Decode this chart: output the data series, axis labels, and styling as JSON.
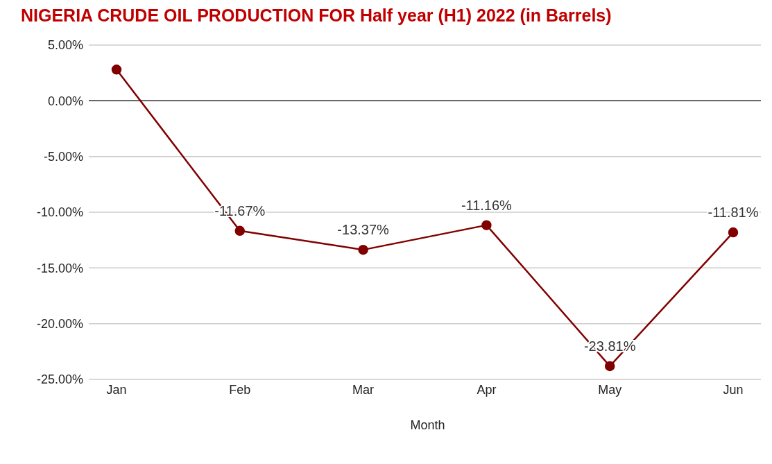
{
  "chart_data": {
    "type": "line",
    "title": "NIGERIA CRUDE OIL PRODUCTION FOR Half year (H1) 2022 (in Barrels)",
    "xlabel": "Month",
    "categories": [
      "Jan",
      "Feb",
      "Mar",
      "Apr",
      "May",
      "Jun"
    ],
    "series": [
      {
        "color": "#800000",
        "values": [
          2.8,
          -11.67,
          -13.37,
          -11.16,
          -23.81,
          -11.81
        ],
        "value_labels": [
          null,
          "-11.67%",
          "-13.37%",
          "-11.16%",
          "-23.81%",
          "-11.81%"
        ]
      }
    ],
    "ylim": [
      -25,
      5
    ],
    "yticks": [
      {
        "value": 5,
        "label": "5.00%"
      },
      {
        "value": 0,
        "label": "0.00%"
      },
      {
        "value": -5,
        "label": "-5.00%"
      },
      {
        "value": -10,
        "label": "-10.00%"
      },
      {
        "value": -15,
        "label": "-15.00%"
      },
      {
        "value": -20,
        "label": "-20.00%"
      },
      {
        "value": -25,
        "label": "-25.00%"
      }
    ],
    "ref_lines": [
      {
        "axis": "y",
        "value": 0,
        "color": "#333333"
      }
    ],
    "grid": "y",
    "legend": false,
    "marker": "circle",
    "line_style": "solid"
  }
}
